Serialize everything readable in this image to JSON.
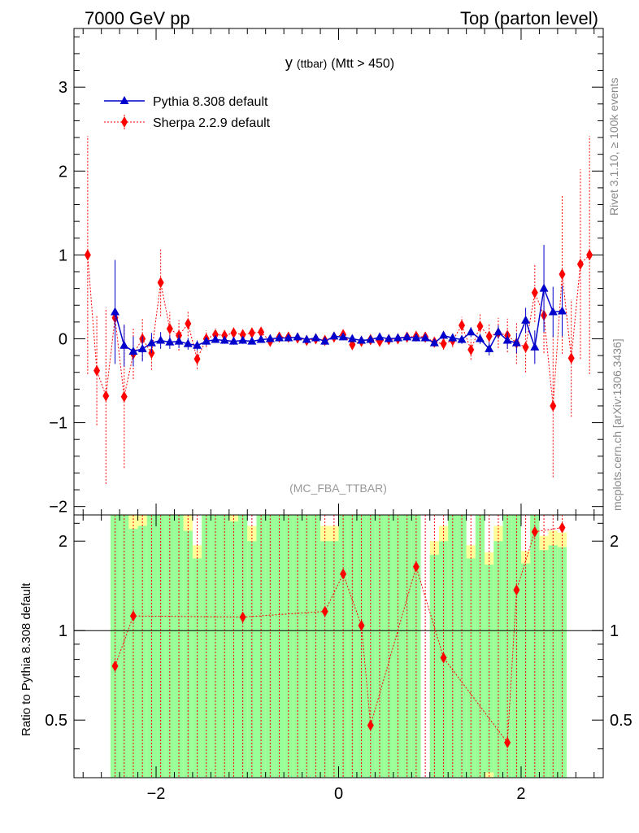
{
  "header": {
    "left": "7000 GeV pp",
    "right": "Top (parton level)"
  },
  "main_plot": {
    "title_main": "y",
    "title_small": "(ttbar)",
    "title_rest": "(Mtt > 450)",
    "watermark": "(MC_FBA_TTBAR)",
    "side_rivet": "Rivet 3.1.10, ≥ 100k events",
    "side_mcplots": "mcplots.cern.ch [arXiv:1306.3436]"
  },
  "ratio_plot": {
    "ylabel": "Ratio to Pythia 8.308 default"
  },
  "colors": {
    "pythia": "#0000cc",
    "sherpa": "#ff0000",
    "band_green": "#99ff99",
    "band_yellow": "#ffff99"
  },
  "chart_data": [
    {
      "type": "line",
      "xlim": [
        -2.9,
        2.9
      ],
      "ylim": [
        -2.1,
        3.7
      ],
      "yticks": [
        -2,
        -1,
        0,
        1,
        2,
        3
      ],
      "ytick_labels": [
        "−2",
        "−1",
        "0",
        "1",
        "2",
        "3"
      ],
      "legend_position": "top-left",
      "series": [
        {
          "name": "Pythia 8.308 default",
          "marker": "triangle",
          "x": [
            -2.45,
            -2.35,
            -2.25,
            -2.15,
            -2.05,
            -1.95,
            -1.85,
            -1.75,
            -1.65,
            -1.55,
            -1.45,
            -1.35,
            -1.25,
            -1.15,
            -1.05,
            -0.95,
            -0.85,
            -0.75,
            -0.65,
            -0.55,
            -0.45,
            -0.35,
            -0.25,
            -0.15,
            -0.05,
            0.05,
            0.15,
            0.25,
            0.35,
            0.45,
            0.55,
            0.65,
            0.75,
            0.85,
            0.95,
            1.05,
            1.15,
            1.25,
            1.35,
            1.45,
            1.55,
            1.65,
            1.75,
            1.85,
            1.95,
            2.05,
            2.15,
            2.25,
            2.35,
            2.45
          ],
          "y": [
            0.32,
            -0.08,
            -0.15,
            -0.12,
            -0.05,
            -0.02,
            -0.04,
            -0.03,
            -0.06,
            -0.08,
            -0.03,
            -0.01,
            -0.02,
            -0.03,
            -0.02,
            -0.03,
            -0.01,
            0.0,
            0.01,
            0.01,
            0.02,
            -0.01,
            0.01,
            -0.03,
            0.03,
            0.02,
            0.0,
            -0.02,
            -0.01,
            0.02,
            0.0,
            0.01,
            0.02,
            0.01,
            0.01,
            -0.05,
            0.04,
            0.01,
            -0.01,
            0.08,
            0.0,
            -0.12,
            0.08,
            -0.02,
            -0.05,
            0.22,
            -0.1,
            0.6,
            0.32,
            0.33
          ],
          "yerr": [
            0.62,
            0.25,
            0.18,
            0.15,
            0.12,
            0.1,
            0.08,
            0.08,
            0.07,
            0.06,
            0.05,
            0.04,
            0.04,
            0.04,
            0.04,
            0.03,
            0.03,
            0.03,
            0.03,
            0.03,
            0.03,
            0.03,
            0.03,
            0.03,
            0.03,
            0.03,
            0.03,
            0.03,
            0.03,
            0.03,
            0.03,
            0.03,
            0.03,
            0.03,
            0.04,
            0.04,
            0.04,
            0.05,
            0.05,
            0.06,
            0.06,
            0.08,
            0.08,
            0.1,
            0.12,
            0.15,
            0.2,
            0.52,
            0.3,
            0.3
          ]
        },
        {
          "name": "Sherpa 2.2.9 default",
          "marker": "diamond",
          "x": [
            -2.75,
            -2.65,
            -2.55,
            -2.45,
            -2.35,
            -2.25,
            -2.15,
            -2.05,
            -1.95,
            -1.85,
            -1.75,
            -1.65,
            -1.55,
            -1.45,
            -1.35,
            -1.25,
            -1.15,
            -1.05,
            -0.95,
            -0.85,
            -0.75,
            -0.65,
            -0.55,
            -0.45,
            -0.35,
            -0.25,
            -0.15,
            -0.05,
            0.05,
            0.15,
            0.25,
            0.35,
            0.45,
            0.55,
            0.65,
            0.75,
            0.85,
            0.95,
            1.05,
            1.15,
            1.25,
            1.35,
            1.45,
            1.55,
            1.65,
            1.75,
            1.85,
            1.95,
            2.05,
            2.15,
            2.25,
            2.35,
            2.45,
            2.55,
            2.65,
            2.75
          ],
          "y": [
            1.0,
            -0.38,
            -0.68,
            0.25,
            -0.69,
            -0.18,
            0.0,
            -0.17,
            0.67,
            0.12,
            0.04,
            0.18,
            -0.24,
            0.0,
            0.05,
            0.04,
            0.07,
            0.05,
            0.07,
            0.08,
            -0.03,
            0.02,
            0.02,
            0.01,
            -0.02,
            0.0,
            -0.02,
            0.02,
            0.05,
            -0.07,
            -0.03,
            -0.01,
            -0.03,
            -0.01,
            0.0,
            0.02,
            0.03,
            0.02,
            -0.04,
            -0.06,
            -0.02,
            0.16,
            -0.13,
            0.15,
            0.03,
            0.07,
            0.04,
            -0.05,
            -0.1,
            0.55,
            0.28,
            -0.8,
            0.77,
            -0.23,
            0.89,
            1.0
          ],
          "yerr": [
            1.42,
            0.65,
            1.05,
            0.45,
            0.85,
            0.3,
            0.25,
            0.2,
            0.4,
            0.2,
            0.18,
            0.15,
            0.12,
            0.1,
            0.08,
            0.07,
            0.07,
            0.06,
            0.06,
            0.05,
            0.05,
            0.05,
            0.05,
            0.05,
            0.05,
            0.05,
            0.05,
            0.05,
            0.05,
            0.05,
            0.05,
            0.05,
            0.05,
            0.05,
            0.05,
            0.05,
            0.05,
            0.06,
            0.06,
            0.07,
            0.08,
            0.1,
            0.12,
            0.15,
            0.15,
            0.18,
            0.2,
            0.25,
            0.3,
            0.35,
            0.45,
            0.85,
            0.95,
            0.7,
            1.13,
            1.42
          ]
        }
      ]
    },
    {
      "type": "line",
      "ylabel": "Ratio to Pythia 8.308 default",
      "xlim": [
        -2.9,
        2.9
      ],
      "ylim": [
        0.32,
        2.45
      ],
      "xticks": [
        -2,
        0,
        2
      ],
      "xtick_labels": [
        "−2",
        "0",
        "2"
      ],
      "yticks": [
        0.5,
        1,
        2
      ],
      "ytick_labels": [
        "0.5",
        "1",
        "2"
      ],
      "reference_line": 1,
      "series": [
        {
          "name": "Sherpa 2.2.9 default",
          "x": [
            -2.45,
            -2.25,
            -1.05,
            -0.15,
            0.05,
            0.25,
            0.35,
            0.85,
            1.15,
            1.85,
            1.95,
            2.15,
            2.45
          ],
          "y": [
            0.76,
            1.12,
            1.11,
            1.16,
            1.55,
            1.04,
            0.48,
            1.64,
            0.81,
            0.42,
            1.37,
            2.15,
            2.22
          ]
        }
      ]
    }
  ]
}
